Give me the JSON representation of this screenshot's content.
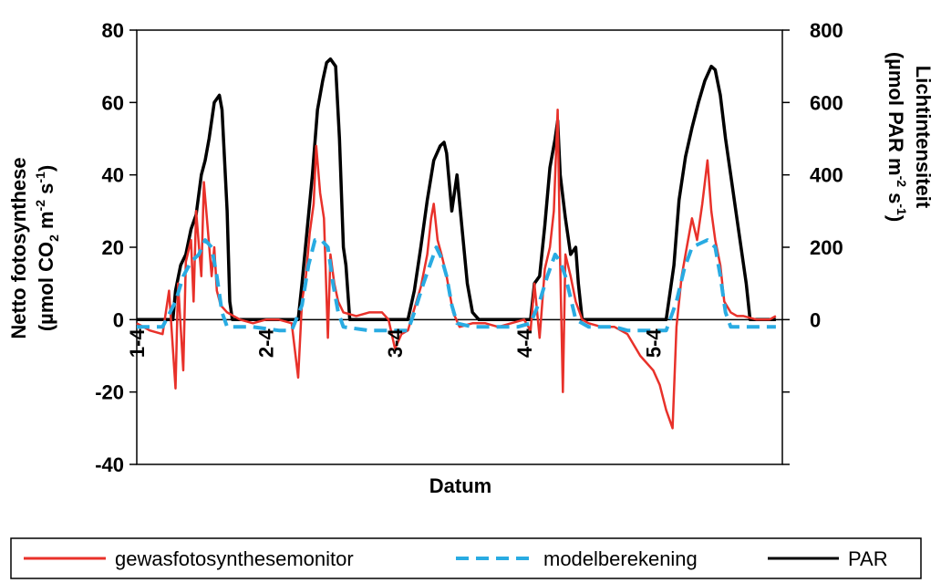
{
  "chart_data": {
    "type": "line",
    "xlabel": "Datum",
    "ylabel_left": [
      "Netto fotosynthese",
      "(µmol CO",
      "2",
      " m",
      "-2",
      " s",
      "-1",
      ")"
    ],
    "ylabel_right": [
      "Lichtintensiteit",
      "(µmol PAR m",
      "-2",
      " s",
      "-1",
      ")"
    ],
    "y_left": {
      "range": [
        -40,
        80
      ],
      "ticks": [
        "-40",
        "-20",
        "0",
        "20",
        "40",
        "60",
        "80"
      ]
    },
    "y_right": {
      "range": [
        -400,
        800
      ],
      "ticks": [
        "0",
        "200",
        "400",
        "600",
        "800"
      ]
    },
    "x_range": [
      1,
      6
    ],
    "x_ticks": [
      {
        "label": "1-4",
        "x": 1
      },
      {
        "label": "2-4",
        "x": 2
      },
      {
        "label": "3-4",
        "x": 3
      },
      {
        "label": "4-4",
        "x": 4
      },
      {
        "label": "5-4",
        "x": 5
      }
    ],
    "legend_position": "bottom",
    "series": [
      {
        "name": "gewasfotosynthesemonitor",
        "axis": "left",
        "color": "#e8312a",
        "style": "solid",
        "points": [
          [
            1.0,
            -1
          ],
          [
            1.1,
            -3
          ],
          [
            1.2,
            -4
          ],
          [
            1.25,
            8
          ],
          [
            1.3,
            -19
          ],
          [
            1.32,
            10
          ],
          [
            1.36,
            -14
          ],
          [
            1.38,
            16
          ],
          [
            1.42,
            22
          ],
          [
            1.44,
            5
          ],
          [
            1.46,
            30
          ],
          [
            1.5,
            12
          ],
          [
            1.52,
            38
          ],
          [
            1.55,
            25
          ],
          [
            1.58,
            12
          ],
          [
            1.6,
            20
          ],
          [
            1.62,
            8
          ],
          [
            1.65,
            4
          ],
          [
            1.7,
            2
          ],
          [
            1.8,
            0
          ],
          [
            1.9,
            -1
          ],
          [
            2.0,
            0
          ],
          [
            2.1,
            0
          ],
          [
            2.2,
            -1
          ],
          [
            2.25,
            -16
          ],
          [
            2.28,
            5
          ],
          [
            2.31,
            12
          ],
          [
            2.34,
            24
          ],
          [
            2.37,
            32
          ],
          [
            2.39,
            48
          ],
          [
            2.42,
            35
          ],
          [
            2.45,
            28
          ],
          [
            2.48,
            -5
          ],
          [
            2.5,
            18
          ],
          [
            2.53,
            10
          ],
          [
            2.56,
            5
          ],
          [
            2.6,
            2
          ],
          [
            2.7,
            1
          ],
          [
            2.8,
            2
          ],
          [
            2.9,
            2
          ],
          [
            2.95,
            0
          ],
          [
            3.0,
            -8
          ],
          [
            3.05,
            -4
          ],
          [
            3.1,
            -3
          ],
          [
            3.15,
            3
          ],
          [
            3.2,
            9
          ],
          [
            3.25,
            18
          ],
          [
            3.28,
            28
          ],
          [
            3.3,
            32
          ],
          [
            3.33,
            22
          ],
          [
            3.36,
            18
          ],
          [
            3.4,
            12
          ],
          [
            3.45,
            2
          ],
          [
            3.5,
            -2
          ],
          [
            3.6,
            -1
          ],
          [
            3.7,
            -1
          ],
          [
            3.8,
            -2
          ],
          [
            3.9,
            -1
          ],
          [
            4.0,
            0
          ],
          [
            4.05,
            -3
          ],
          [
            4.08,
            10
          ],
          [
            4.12,
            -5
          ],
          [
            4.16,
            14
          ],
          [
            4.2,
            20
          ],
          [
            4.23,
            30
          ],
          [
            4.26,
            58
          ],
          [
            4.28,
            15
          ],
          [
            4.3,
            -20
          ],
          [
            4.32,
            18
          ],
          [
            4.36,
            12
          ],
          [
            4.4,
            5
          ],
          [
            4.45,
            0
          ],
          [
            4.5,
            -1
          ],
          [
            4.6,
            -2
          ],
          [
            4.7,
            -2
          ],
          [
            4.8,
            -4
          ],
          [
            4.9,
            -10
          ],
          [
            5.0,
            -14
          ],
          [
            5.05,
            -18
          ],
          [
            5.1,
            -25
          ],
          [
            5.15,
            -30
          ],
          [
            5.18,
            -2
          ],
          [
            5.22,
            12
          ],
          [
            5.26,
            20
          ],
          [
            5.3,
            28
          ],
          [
            5.34,
            22
          ],
          [
            5.38,
            32
          ],
          [
            5.42,
            44
          ],
          [
            5.45,
            30
          ],
          [
            5.48,
            22
          ],
          [
            5.52,
            15
          ],
          [
            5.55,
            5
          ],
          [
            5.6,
            2
          ],
          [
            5.65,
            1
          ],
          [
            5.7,
            1
          ],
          [
            5.8,
            0
          ],
          [
            5.9,
            0
          ],
          [
            5.95,
            1
          ]
        ]
      },
      {
        "name": "modelberekening",
        "axis": "left",
        "color": "#29abe2",
        "style": "dashed",
        "points": [
          [
            1.0,
            -2
          ],
          [
            1.1,
            -2
          ],
          [
            1.2,
            -2
          ],
          [
            1.3,
            5
          ],
          [
            1.36,
            12
          ],
          [
            1.42,
            16
          ],
          [
            1.48,
            18
          ],
          [
            1.53,
            22
          ],
          [
            1.58,
            20
          ],
          [
            1.62,
            12
          ],
          [
            1.66,
            2
          ],
          [
            1.7,
            -2
          ],
          [
            1.9,
            -2
          ],
          [
            2.1,
            -3
          ],
          [
            2.2,
            -3
          ],
          [
            2.28,
            4
          ],
          [
            2.33,
            15
          ],
          [
            2.38,
            22
          ],
          [
            2.43,
            22
          ],
          [
            2.48,
            20
          ],
          [
            2.52,
            10
          ],
          [
            2.56,
            2
          ],
          [
            2.6,
            -2
          ],
          [
            2.8,
            -3
          ],
          [
            2.95,
            -3
          ],
          [
            3.1,
            -3
          ],
          [
            3.15,
            2
          ],
          [
            3.22,
            10
          ],
          [
            3.28,
            16
          ],
          [
            3.32,
            20
          ],
          [
            3.36,
            17
          ],
          [
            3.4,
            12
          ],
          [
            3.44,
            4
          ],
          [
            3.48,
            -1
          ],
          [
            3.6,
            -2
          ],
          [
            3.8,
            -2
          ],
          [
            3.95,
            -2
          ],
          [
            4.05,
            -1
          ],
          [
            4.12,
            5
          ],
          [
            4.18,
            12
          ],
          [
            4.24,
            18
          ],
          [
            4.28,
            16
          ],
          [
            4.32,
            12
          ],
          [
            4.36,
            6
          ],
          [
            4.4,
            0
          ],
          [
            4.5,
            -2
          ],
          [
            4.7,
            -2
          ],
          [
            4.8,
            -3
          ],
          [
            4.95,
            -3
          ],
          [
            5.1,
            -3
          ],
          [
            5.18,
            5
          ],
          [
            5.24,
            14
          ],
          [
            5.3,
            20
          ],
          [
            5.36,
            21
          ],
          [
            5.42,
            22
          ],
          [
            5.48,
            20
          ],
          [
            5.52,
            12
          ],
          [
            5.56,
            2
          ],
          [
            5.6,
            -2
          ],
          [
            5.8,
            -2
          ],
          [
            5.95,
            -2
          ]
        ]
      },
      {
        "name": "PAR",
        "axis": "right",
        "color": "#000000",
        "style": "solid",
        "points": [
          [
            1.0,
            0
          ],
          [
            1.1,
            0
          ],
          [
            1.2,
            0
          ],
          [
            1.28,
            0
          ],
          [
            1.3,
            80
          ],
          [
            1.34,
            150
          ],
          [
            1.38,
            180
          ],
          [
            1.42,
            250
          ],
          [
            1.46,
            290
          ],
          [
            1.5,
            400
          ],
          [
            1.53,
            440
          ],
          [
            1.56,
            500
          ],
          [
            1.6,
            600
          ],
          [
            1.64,
            620
          ],
          [
            1.66,
            580
          ],
          [
            1.7,
            300
          ],
          [
            1.72,
            50
          ],
          [
            1.74,
            0
          ],
          [
            1.9,
            0
          ],
          [
            2.1,
            0
          ],
          [
            2.2,
            0
          ],
          [
            2.25,
            0
          ],
          [
            2.28,
            100
          ],
          [
            2.32,
            250
          ],
          [
            2.36,
            400
          ],
          [
            2.4,
            580
          ],
          [
            2.44,
            660
          ],
          [
            2.47,
            710
          ],
          [
            2.5,
            720
          ],
          [
            2.54,
            700
          ],
          [
            2.57,
            500
          ],
          [
            2.6,
            200
          ],
          [
            2.62,
            150
          ],
          [
            2.65,
            0
          ],
          [
            2.8,
            0
          ],
          [
            2.95,
            0
          ],
          [
            3.1,
            0
          ],
          [
            3.15,
            80
          ],
          [
            3.2,
            200
          ],
          [
            3.25,
            330
          ],
          [
            3.3,
            440
          ],
          [
            3.35,
            480
          ],
          [
            3.38,
            490
          ],
          [
            3.4,
            460
          ],
          [
            3.44,
            300
          ],
          [
            3.48,
            400
          ],
          [
            3.52,
            250
          ],
          [
            3.56,
            100
          ],
          [
            3.6,
            20
          ],
          [
            3.65,
            0
          ],
          [
            3.8,
            0
          ],
          [
            3.95,
            0
          ],
          [
            4.05,
            0
          ],
          [
            4.08,
            100
          ],
          [
            4.12,
            120
          ],
          [
            4.16,
            260
          ],
          [
            4.2,
            420
          ],
          [
            4.24,
            500
          ],
          [
            4.26,
            550
          ],
          [
            4.28,
            400
          ],
          [
            4.32,
            280
          ],
          [
            4.36,
            180
          ],
          [
            4.4,
            200
          ],
          [
            4.42,
            100
          ],
          [
            4.45,
            0
          ],
          [
            4.6,
            0
          ],
          [
            4.8,
            0
          ],
          [
            4.95,
            0
          ],
          [
            5.1,
            0
          ],
          [
            5.16,
            150
          ],
          [
            5.2,
            330
          ],
          [
            5.25,
            450
          ],
          [
            5.3,
            530
          ],
          [
            5.35,
            600
          ],
          [
            5.4,
            660
          ],
          [
            5.45,
            700
          ],
          [
            5.48,
            690
          ],
          [
            5.52,
            620
          ],
          [
            5.56,
            500
          ],
          [
            5.6,
            400
          ],
          [
            5.64,
            300
          ],
          [
            5.68,
            200
          ],
          [
            5.72,
            100
          ],
          [
            5.75,
            0
          ],
          [
            5.85,
            0
          ],
          [
            5.95,
            0
          ]
        ]
      }
    ]
  }
}
